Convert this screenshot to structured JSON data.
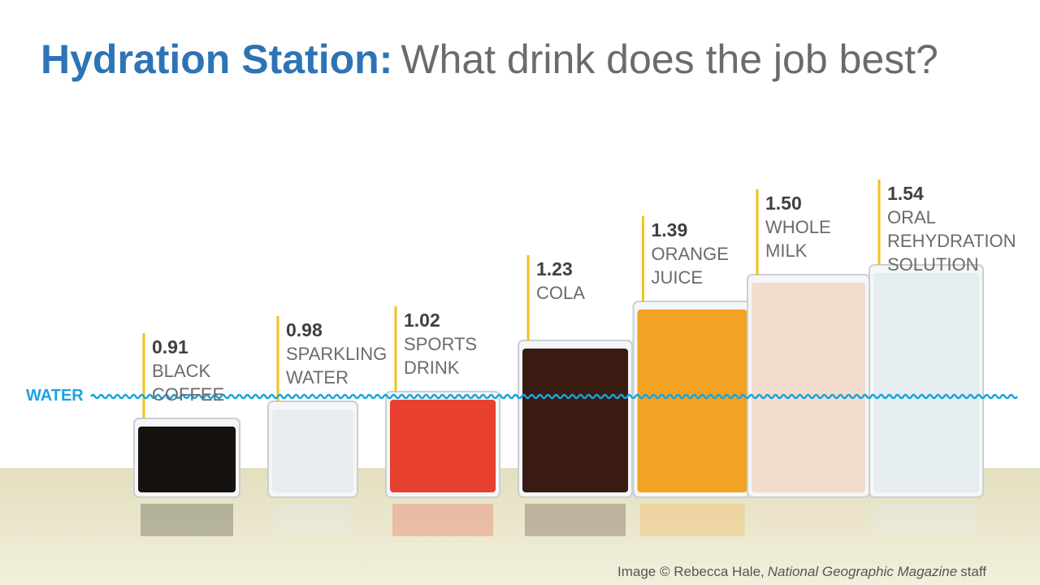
{
  "chart_data": {
    "type": "bar",
    "title": "Hydration Station:",
    "subtitle": "What drink does the job best?",
    "categories": [
      "BLACK COFFEE",
      "SPARKLING WATER",
      "SPORTS DRINK",
      "COLA",
      "ORANGE JUICE",
      "WHOLE MILK",
      "ORAL REHYDRATION SOLUTION"
    ],
    "values": [
      0.91,
      0.98,
      1.02,
      1.23,
      1.39,
      1.5,
      1.54
    ],
    "value_labels": [
      "0.91",
      "0.98",
      "1.02",
      "1.23",
      "1.39",
      "1.50",
      "1.54"
    ],
    "colors": [
      "#161210",
      "#e9ecee",
      "#e8402e",
      "#3a1b12",
      "#f2a324",
      "#f2dccd",
      "#e6edf0"
    ],
    "reference": {
      "value": 1,
      "label": "WATER",
      "color": "#19a3dd"
    },
    "credit": [
      "Image © Rebecca Hale,",
      "National Geographic Magazine",
      "staff"
    ]
  }
}
